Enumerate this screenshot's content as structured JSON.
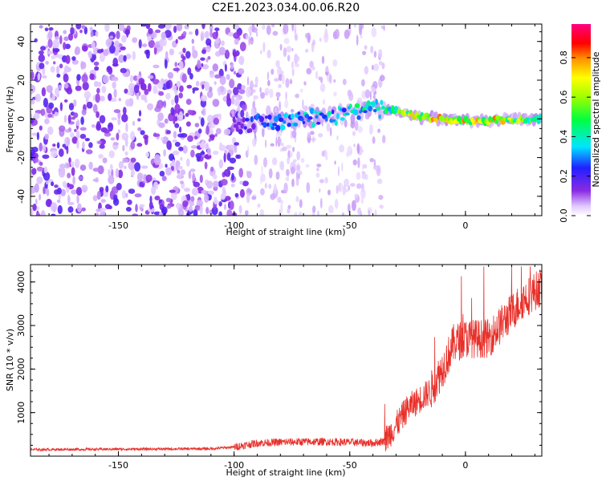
{
  "figure": {
    "title": "C2E1.2023.034.00.06.R20"
  },
  "chart_data": [
    {
      "type": "heatmap",
      "xlabel": "Height of straight line (km)",
      "ylabel": "Frequency (Hz)",
      "xlim": [
        -188,
        33
      ],
      "ylim": [
        -50,
        49
      ],
      "x_ticks": [
        "-150",
        "-100",
        "-50",
        "0"
      ],
      "y_ticks": [
        "-40",
        "-20",
        "0",
        "20",
        "40"
      ],
      "colorbar": {
        "label": "Normalized spectral amplitude",
        "range": [
          0.0,
          0.97
        ],
        "ticks": [
          "0.0",
          "0.2",
          "0.4",
          "0.6",
          "0.8"
        ],
        "colors": [
          "#ffffff",
          "#9b30ff",
          "#2020ff",
          "#00e5ff",
          "#00ff40",
          "#a0ff00",
          "#ffff00",
          "#ff9000",
          "#ff0000",
          "#ff0080"
        ]
      },
      "ridge": {
        "x": [
          -100,
          -90,
          -80,
          -70,
          -60,
          -50,
          -40,
          -30,
          -20,
          -10,
          0,
          10,
          20,
          30
        ],
        "y": [
          -4,
          -2,
          -1,
          0,
          1,
          3,
          5,
          4,
          1,
          0,
          -1,
          -1,
          0,
          0
        ],
        "peak_amplitude": [
          0.15,
          0.3,
          0.35,
          0.4,
          0.4,
          0.45,
          0.5,
          0.6,
          0.8,
          0.85,
          0.8,
          0.85,
          0.7,
          0.6
        ]
      },
      "noise_field": {
        "x_range": [
          -188,
          -95
        ],
        "amplitude": 0.12
      }
    },
    {
      "type": "line",
      "xlabel": "Height of straight line (km)",
      "ylabel": "SNR (10 * v/v)",
      "xlim": [
        -188,
        33
      ],
      "ylim": [
        0,
        4400
      ],
      "x_ticks": [
        "-150",
        "-100",
        "-50",
        "0"
      ],
      "y_ticks": [
        "1000",
        "2000",
        "3000",
        "4000"
      ],
      "series": [
        {
          "color": "#e8302a",
          "x": [
            -188,
            -150,
            -110,
            -100,
            -90,
            -80,
            -70,
            -60,
            -50,
            -40,
            -35,
            -30,
            -25,
            -20,
            -15,
            -10,
            -5,
            0,
            5,
            10,
            15,
            20,
            25,
            33
          ],
          "y": [
            150,
            160,
            170,
            210,
            300,
            320,
            330,
            330,
            320,
            300,
            350,
            700,
            1100,
            1300,
            1500,
            2000,
            2600,
            2700,
            2700,
            2700,
            3000,
            3300,
            3600,
            3900
          ]
        }
      ]
    }
  ]
}
